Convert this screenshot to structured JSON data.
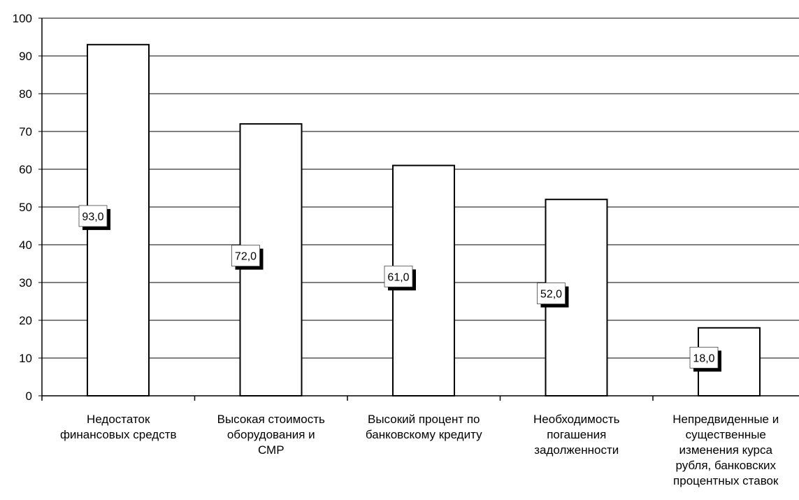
{
  "chart_data": {
    "type": "bar",
    "categories": [
      [
        "Недостаток",
        "финансовых средств"
      ],
      [
        "Высокая стоимость",
        "оборудования и",
        "СМР"
      ],
      [
        "Высокий процент по",
        "банковскому кредиту"
      ],
      [
        "Необходимость",
        "погашения",
        "задолженности"
      ],
      [
        "Непредвиденные и",
        "существенные",
        "изменения курса",
        "рубля, банковских",
        "процентных ставок"
      ]
    ],
    "values": [
      93,
      72,
      61,
      52,
      18
    ],
    "data_labels": [
      "93,0",
      "72,0",
      "61,0",
      "52,0",
      "18,0"
    ],
    "ylim": [
      0,
      100
    ],
    "y_ticks": [
      0,
      10,
      20,
      30,
      40,
      50,
      60,
      70,
      80,
      90,
      100
    ],
    "grid": true,
    "legend": "none",
    "colors": {
      "bar_fill": "#ffffff",
      "bar_stroke": "#000000",
      "grid": "#000000",
      "label_shadow": "#000000"
    }
  }
}
